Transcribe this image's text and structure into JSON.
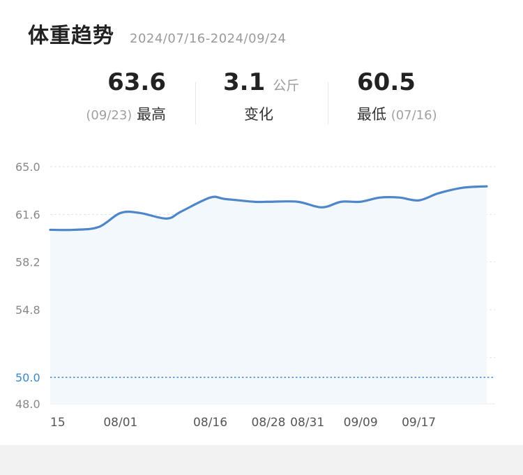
{
  "header": {
    "title": "体重趋势",
    "date_range": "2024/07/16-2024/09/24"
  },
  "stats": {
    "max": {
      "value": "63.6",
      "date": "(09/23)",
      "label": "最高"
    },
    "change": {
      "value": "3.1",
      "unit": "公斤",
      "label": "变化"
    },
    "min": {
      "value": "60.5",
      "label": "最低",
      "date": "(07/16)"
    }
  },
  "colors": {
    "line": "#4f86c9",
    "fill": "#f3f8fd",
    "target_line": "#3b88c8",
    "target_label": "#3b88c8",
    "grid": "#d8e2ee"
  },
  "chart_data": {
    "type": "area",
    "ylim": [
      48.0,
      65.0
    ],
    "y_ticks": [
      "65.0",
      "61.6",
      "58.2",
      "54.8",
      "48.0"
    ],
    "target": {
      "value": 50.0,
      "label": "50.0"
    },
    "x_tick_labels": [
      "15",
      "08/01",
      "08/16",
      "08/28",
      "08/31",
      "09/09",
      "09/17"
    ],
    "x_tick_positions": [
      0,
      1.45,
      3.3,
      4.5,
      5.3,
      6.4,
      7.6
    ],
    "x": [
      0,
      0.5,
      1,
      1.45,
      1.85,
      2.4,
      2.7,
      3.3,
      3.6,
      4.2,
      4.5,
      5.1,
      5.6,
      6.0,
      6.4,
      6.8,
      7.2,
      7.6,
      8.0,
      8.5,
      9.0
    ],
    "values": [
      60.5,
      60.5,
      60.7,
      61.7,
      61.7,
      61.3,
      61.8,
      62.8,
      62.7,
      62.5,
      62.5,
      62.5,
      62.1,
      62.5,
      62.5,
      62.8,
      62.8,
      62.6,
      63.1,
      63.5,
      63.6
    ],
    "grid": true
  }
}
